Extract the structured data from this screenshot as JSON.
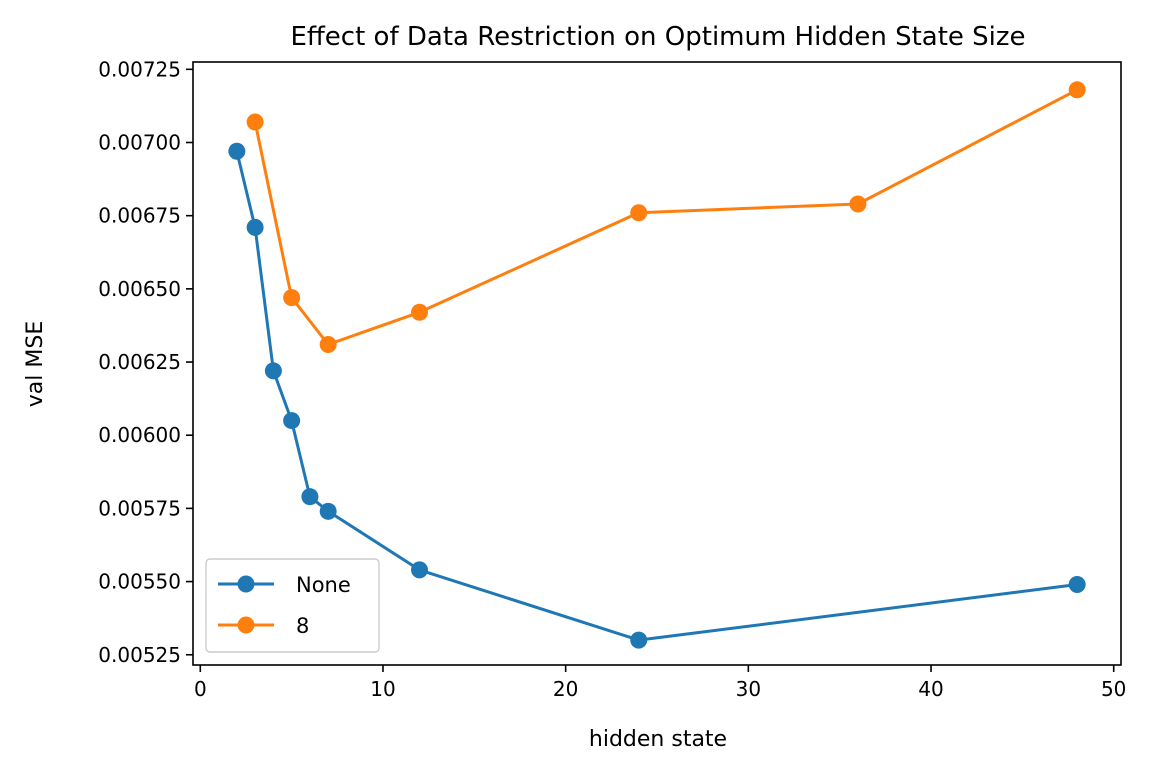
{
  "chart_data": {
    "type": "line",
    "title": "Effect of Data Restriction on Optimum Hidden State Size",
    "xlabel": "hidden state",
    "ylabel": "val MSE",
    "xlim": [
      -0.4,
      50.4
    ],
    "ylim": [
      0.005215,
      0.007275
    ],
    "x_ticks": [
      0,
      10,
      20,
      30,
      40,
      50
    ],
    "x_tick_labels": [
      "0",
      "10",
      "20",
      "30",
      "40",
      "50"
    ],
    "y_ticks": [
      0.00525,
      0.0055,
      0.00575,
      0.006,
      0.00625,
      0.0065,
      0.00675,
      0.007,
      0.00725
    ],
    "y_tick_labels": [
      "0.00525",
      "0.00550",
      "0.00575",
      "0.00600",
      "0.00625",
      "0.00650",
      "0.00675",
      "0.00700",
      "0.00725"
    ],
    "grid": false,
    "legend_position": "lower-left",
    "series": [
      {
        "name": "None",
        "color": "#1f77b4",
        "marker": "circle",
        "x": [
          2,
          3,
          4,
          5,
          6,
          7,
          12,
          24,
          48
        ],
        "y": [
          0.00697,
          0.00671,
          0.00622,
          0.00605,
          0.00579,
          0.00574,
          0.00554,
          0.0053,
          0.00549
        ]
      },
      {
        "name": "8",
        "color": "#ff7f0e",
        "marker": "circle",
        "x": [
          3,
          5,
          7,
          12,
          24,
          36,
          48
        ],
        "y": [
          0.00707,
          0.00647,
          0.00631,
          0.00642,
          0.00676,
          0.00679,
          0.00718
        ]
      }
    ]
  }
}
